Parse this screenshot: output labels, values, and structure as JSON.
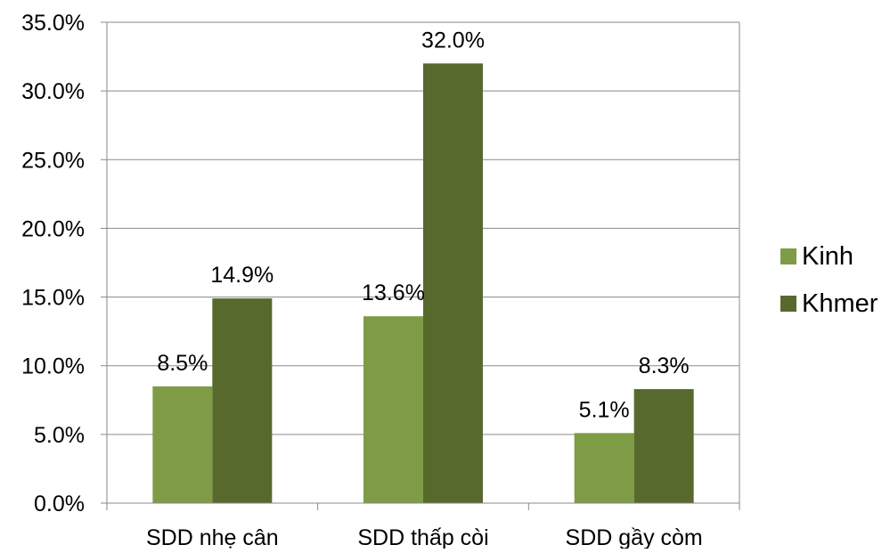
{
  "chart_data": {
    "type": "bar",
    "categories": [
      "SDD nhẹ cân",
      "SDD thấp còi",
      "SDD gầy còm"
    ],
    "series": [
      {
        "name": "Kinh",
        "color": "#7e9c45",
        "values": [
          8.5,
          13.6,
          5.1
        ],
        "labels": [
          "8.5%",
          "13.6%",
          "5.1%"
        ]
      },
      {
        "name": "Khmer",
        "color": "#58692e",
        "values": [
          14.9,
          32.0,
          8.3
        ],
        "labels": [
          "14.9%",
          "32.0%",
          "8.3%"
        ]
      }
    ],
    "yticks": [
      "0.0%",
      "5.0%",
      "10.0%",
      "15.0%",
      "20.0%",
      "25.0%",
      "30.0%",
      "35.0%"
    ],
    "ylim": [
      0,
      35
    ],
    "grid": true,
    "legend_position": "right"
  }
}
